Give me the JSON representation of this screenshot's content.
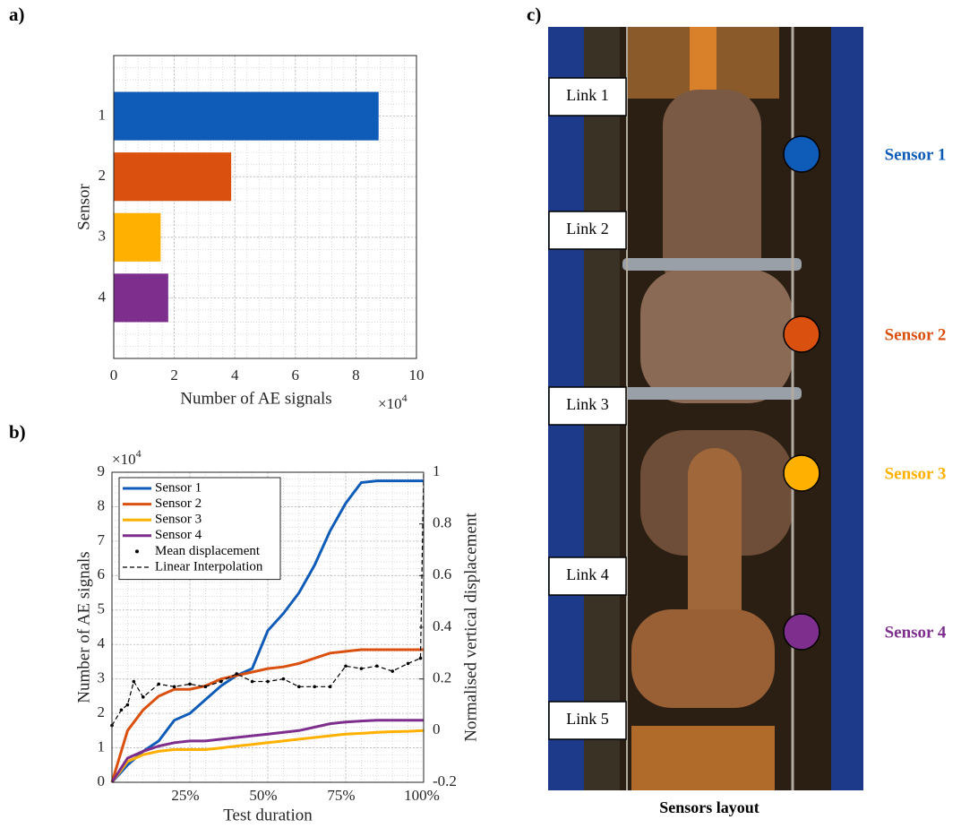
{
  "panel_labels": [
    "a)",
    "b)",
    "c)"
  ],
  "chart_data": [
    {
      "type": "hbar",
      "xlabel": "Number of AE signals",
      "ylabel": "Sensor",
      "x_multiplier": {
        "base": "×10",
        "exponent": "4"
      },
      "categories": [
        "1",
        "2",
        "3",
        "4"
      ],
      "values": [
        8.75,
        3.88,
        1.55,
        1.8
      ],
      "colors": [
        "#0f5cb8",
        "#d9500f",
        "#ffb000",
        "#7e2f8e"
      ],
      "xlim": [
        0,
        10
      ],
      "xticks": [
        0,
        2,
        4,
        6,
        8,
        10
      ],
      "grid": true,
      "minor_grid": true
    },
    {
      "type": "line",
      "xlabel": "Test duration",
      "ylabel": "Number of AE signals",
      "y2label": "Normalised vertical displacement",
      "y_multiplier": {
        "base": "×10",
        "exponent": "4"
      },
      "x": [
        0,
        5,
        10,
        15,
        20,
        25,
        30,
        35,
        40,
        45,
        50,
        55,
        60,
        65,
        70,
        75,
        80,
        85,
        90,
        95,
        100
      ],
      "xlim": [
        0,
        100
      ],
      "xticks": [
        {
          "value": 25,
          "label": "25%"
        },
        {
          "value": 50,
          "label": "50%"
        },
        {
          "value": 75,
          "label": "75%"
        },
        {
          "value": 100,
          "label": "100%"
        }
      ],
      "ylim": [
        0,
        9
      ],
      "yticks": [
        0,
        1,
        2,
        3,
        4,
        5,
        6,
        7,
        8,
        9
      ],
      "y2lim": [
        -0.2,
        1
      ],
      "y2ticks": [
        -0.2,
        0,
        0.2,
        0.4,
        0.6,
        0.8,
        1
      ],
      "grid": true,
      "minor_grid": true,
      "legend": "upper-left",
      "series": [
        {
          "name": "Sensor 1",
          "color": "#0f5cb8",
          "style": "line",
          "values": [
            0,
            0.5,
            0.9,
            1.2,
            1.8,
            2.0,
            2.4,
            2.8,
            3.1,
            3.3,
            4.4,
            4.9,
            5.5,
            6.3,
            7.3,
            8.1,
            8.7,
            8.75,
            8.75,
            8.75,
            8.75
          ]
        },
        {
          "name": "Sensor 2",
          "color": "#d9500f",
          "style": "line",
          "values": [
            0,
            1.5,
            2.1,
            2.5,
            2.7,
            2.7,
            2.8,
            3.0,
            3.1,
            3.2,
            3.3,
            3.35,
            3.45,
            3.6,
            3.75,
            3.8,
            3.85,
            3.85,
            3.85,
            3.85,
            3.85
          ]
        },
        {
          "name": "Sensor 3",
          "color": "#ffb000",
          "style": "line",
          "values": [
            0,
            0.6,
            0.8,
            0.9,
            0.95,
            0.95,
            0.95,
            1.0,
            1.05,
            1.1,
            1.15,
            1.2,
            1.25,
            1.3,
            1.35,
            1.4,
            1.42,
            1.45,
            1.47,
            1.48,
            1.5
          ]
        },
        {
          "name": "Sensor 4",
          "color": "#7e2f8e",
          "style": "line",
          "values": [
            0,
            0.7,
            0.9,
            1.05,
            1.15,
            1.2,
            1.2,
            1.25,
            1.3,
            1.35,
            1.4,
            1.45,
            1.5,
            1.6,
            1.7,
            1.75,
            1.78,
            1.8,
            1.8,
            1.8,
            1.8
          ]
        },
        {
          "name": "Mean displacement",
          "color": "#000000",
          "style": "dots",
          "axis": "y2",
          "x": [
            0,
            3,
            5,
            7,
            10,
            15,
            20,
            25,
            30,
            35,
            40,
            45,
            50,
            55,
            60,
            65,
            70,
            75,
            80,
            85,
            90,
            95,
            99,
            100
          ],
          "values": [
            0.02,
            0.08,
            0.1,
            0.19,
            0.13,
            0.18,
            0.17,
            0.18,
            0.17,
            0.19,
            0.22,
            0.19,
            0.19,
            0.2,
            0.17,
            0.17,
            0.17,
            0.25,
            0.24,
            0.25,
            0.23,
            0.26,
            0.28,
            null
          ]
        },
        {
          "name": "Linear Interpolation",
          "color": "#000000",
          "style": "dashed",
          "axis": "y2",
          "x": [
            0,
            3,
            5,
            7,
            10,
            15,
            20,
            25,
            30,
            35,
            40,
            45,
            50,
            55,
            60,
            65,
            70,
            75,
            80,
            85,
            90,
            95,
            99,
            100
          ],
          "values": [
            0.02,
            0.08,
            0.1,
            0.19,
            0.13,
            0.18,
            0.17,
            0.18,
            0.17,
            0.19,
            0.22,
            0.19,
            0.19,
            0.2,
            0.17,
            0.17,
            0.17,
            0.25,
            0.24,
            0.25,
            0.23,
            0.26,
            0.28,
            1
          ]
        }
      ]
    }
  ],
  "photo": {
    "links": [
      "Link 1",
      "Link 2",
      "Link 3",
      "Link 4",
      "Link 5"
    ],
    "sensors": [
      {
        "name": "Sensor 1",
        "color": "#0f5cb8"
      },
      {
        "name": "Sensor 2",
        "color": "#d9500f"
      },
      {
        "name": "Sensor 3",
        "color": "#ffb000"
      },
      {
        "name": "Sensor 4",
        "color": "#7e2f8e"
      }
    ],
    "caption": "Sensors layout"
  }
}
